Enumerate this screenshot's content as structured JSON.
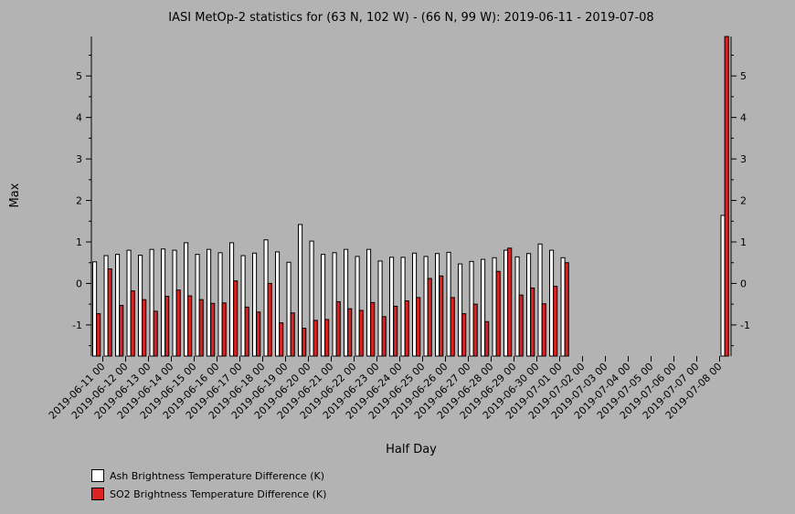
{
  "chart_data": {
    "type": "bar",
    "title": "IASI MetOp-2 statistics for (63 N, 102 W) - (66 N, 99 W): 2019-06-11 - 2019-07-08",
    "xlabel": "Half Day",
    "ylabel": "Max",
    "ylim": [
      -1.75,
      5.95
    ],
    "y_ticks": [
      "-1",
      "0",
      "1",
      "2",
      "3",
      "4",
      "5"
    ],
    "categories": [
      "2019-06-11 00",
      "2019-06-11 12",
      "2019-06-12 00",
      "2019-06-12 12",
      "2019-06-13 00",
      "2019-06-13 12",
      "2019-06-14 00",
      "2019-06-14 12",
      "2019-06-15 00",
      "2019-06-15 12",
      "2019-06-16 00",
      "2019-06-16 12",
      "2019-06-17 00",
      "2019-06-17 12",
      "2019-06-18 00",
      "2019-06-18 12",
      "2019-06-19 00",
      "2019-06-19 12",
      "2019-06-20 00",
      "2019-06-20 12",
      "2019-06-21 00",
      "2019-06-21 12",
      "2019-06-22 00",
      "2019-06-22 12",
      "2019-06-23 00",
      "2019-06-23 12",
      "2019-06-24 00",
      "2019-06-24 12",
      "2019-06-25 00",
      "2019-06-25 12",
      "2019-06-26 00",
      "2019-06-26 12",
      "2019-06-27 00",
      "2019-06-27 12",
      "2019-06-28 00",
      "2019-06-28 12",
      "2019-06-29 00",
      "2019-06-29 12",
      "2019-06-30 00",
      "2019-06-30 12",
      "2019-07-01 00",
      "2019-07-01 12",
      "2019-07-02 00",
      "2019-07-02 12",
      "2019-07-03 00",
      "2019-07-03 12",
      "2019-07-04 00",
      "2019-07-04 12",
      "2019-07-05 00",
      "2019-07-05 12",
      "2019-07-06 00",
      "2019-07-06 12",
      "2019-07-07 00",
      "2019-07-07 12",
      "2019-07-08 00",
      "2019-07-08 12"
    ],
    "x_tick_labels": [
      "2019-06-11 00",
      "2019-06-12 00",
      "2019-06-13 00",
      "2019-06-14 00",
      "2019-06-15 00",
      "2019-06-16 00",
      "2019-06-17 00",
      "2019-06-18 00",
      "2019-06-19 00",
      "2019-06-20 00",
      "2019-06-21 00",
      "2019-06-22 00",
      "2019-06-23 00",
      "2019-06-24 00",
      "2019-06-25 00",
      "2019-06-26 00",
      "2019-06-27 00",
      "2019-06-28 00",
      "2019-06-29 00",
      "2019-06-30 00",
      "2019-07-01 00",
      "2019-07-02 00",
      "2019-07-03 00",
      "2019-07-04 00",
      "2019-07-05 00",
      "2019-07-06 00",
      "2019-07-07 00",
      "2019-07-08 00"
    ],
    "series": [
      {
        "name": "Ash Brightness Temperature Difference (K)",
        "color": "#ffffff",
        "values": [
          0.52,
          0.67,
          0.7,
          0.8,
          0.68,
          0.82,
          0.83,
          0.8,
          0.98,
          0.7,
          0.82,
          0.74,
          0.98,
          0.67,
          0.73,
          1.05,
          0.76,
          0.51,
          1.42,
          1.02,
          0.7,
          0.74,
          0.82,
          0.65,
          0.82,
          0.54,
          0.63,
          0.63,
          0.73,
          0.65,
          0.72,
          0.75,
          0.47,
          0.53,
          0.58,
          0.62,
          0.8,
          0.64,
          0.72,
          0.95,
          0.8,
          0.62,
          null,
          null,
          null,
          null,
          null,
          null,
          null,
          null,
          null,
          null,
          null,
          null,
          null,
          1.64
        ]
      },
      {
        "name": "SO2 Brightness Temperature Difference (K)",
        "color": "#dd2222",
        "values": [
          -0.73,
          0.35,
          -0.53,
          -0.18,
          -0.39,
          -0.67,
          -0.31,
          -0.16,
          -0.3,
          -0.39,
          -0.48,
          -0.47,
          0.06,
          -0.57,
          -0.69,
          0.0,
          -0.95,
          -0.71,
          -1.08,
          -0.89,
          -0.87,
          -0.44,
          -0.61,
          -0.65,
          -0.46,
          -0.8,
          -0.55,
          -0.42,
          -0.34,
          0.12,
          0.18,
          -0.34,
          -0.73,
          -0.5,
          -0.92,
          0.29,
          0.85,
          -0.28,
          -0.11,
          -0.49,
          -0.07,
          0.5,
          null,
          null,
          null,
          null,
          null,
          null,
          null,
          null,
          null,
          null,
          null,
          null,
          null,
          5.95
        ]
      }
    ]
  }
}
